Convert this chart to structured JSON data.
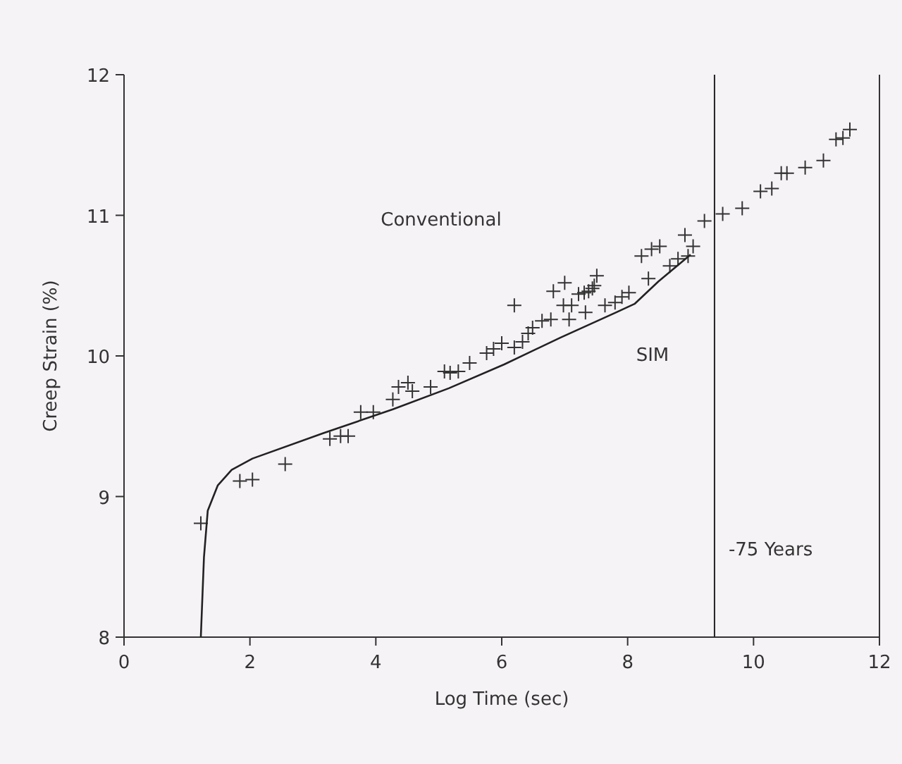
{
  "chart_data": {
    "type": "scatter",
    "xlabel": "Log Time (sec)",
    "ylabel": "Creep Strain (%)",
    "xlim": [
      0,
      12
    ],
    "ylim": [
      8,
      12
    ],
    "xticks": [
      0,
      2,
      4,
      6,
      8,
      10,
      12
    ],
    "yticks": [
      8,
      9,
      10,
      11,
      12
    ],
    "grid": false,
    "legend": false,
    "marker": "cross",
    "series": [
      {
        "color": "#333333",
        "x": [
          1.22,
          1.84,
          2.04,
          2.56,
          3.27,
          3.44,
          3.56,
          3.76,
          3.96,
          4.27,
          4.36,
          4.51,
          4.58,
          4.87,
          5.09,
          5.18,
          5.31,
          5.49,
          5.76,
          5.87,
          6.0,
          6.2,
          6.2,
          6.33,
          6.42,
          6.49,
          6.64,
          6.78,
          6.82,
          6.98,
          7.0,
          7.07,
          7.11,
          7.22,
          7.31,
          7.38,
          7.44,
          7.47,
          7.51,
          7.33,
          7.64,
          7.8,
          7.91,
          8.02,
          8.22,
          8.33,
          8.38,
          8.51,
          8.67,
          8.8,
          8.91,
          8.96,
          9.04,
          9.22,
          9.51,
          9.82,
          10.11,
          10.29,
          10.44,
          10.53,
          10.82,
          11.11,
          11.31,
          11.42,
          11.53
        ],
        "values": [
          8.81,
          9.11,
          9.12,
          9.23,
          9.41,
          9.43,
          9.43,
          9.6,
          9.6,
          9.69,
          9.78,
          9.81,
          9.75,
          9.78,
          9.89,
          9.88,
          9.89,
          9.95,
          10.02,
          10.05,
          10.09,
          10.06,
          10.36,
          10.1,
          10.16,
          10.2,
          10.25,
          10.26,
          10.46,
          10.36,
          10.52,
          10.26,
          10.36,
          10.44,
          10.45,
          10.46,
          10.48,
          10.5,
          10.57,
          10.31,
          10.36,
          10.38,
          10.42,
          10.45,
          10.71,
          10.55,
          10.76,
          10.78,
          10.64,
          10.69,
          10.86,
          10.71,
          10.78,
          10.96,
          11.01,
          11.05,
          11.17,
          11.19,
          11.3,
          11.3,
          11.34,
          11.39,
          11.54,
          11.55,
          11.61
        ]
      },
      {
        "type": "line",
        "name": "SIM",
        "color": "#222222",
        "line_style": "solid",
        "marker": "none",
        "x": [
          1.22,
          1.27,
          1.33,
          1.49,
          1.71,
          2.04,
          3.16,
          4.27,
          5.16,
          6.04,
          6.93,
          7.82,
          8.11,
          8.49,
          9.0
        ],
        "values": [
          8,
          8.57,
          8.9,
          9.08,
          9.19,
          9.27,
          9.45,
          9.62,
          9.77,
          9.94,
          10.13,
          10.31,
          10.37,
          10.53,
          10.72
        ]
      }
    ],
    "ref_lines": [
      {
        "axis": "x",
        "value": 9.38,
        "label": "-75 Years",
        "color": "#222222"
      }
    ],
    "annotations": [
      "Conventional"
    ]
  }
}
